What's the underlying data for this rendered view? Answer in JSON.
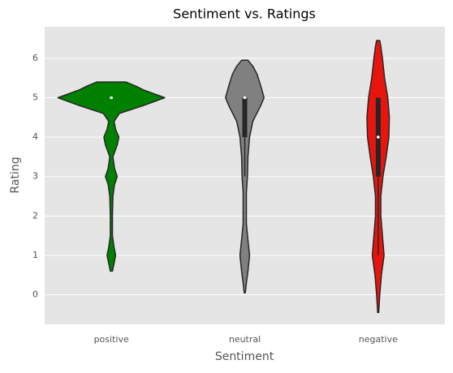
{
  "chart_data": {
    "type": "violin",
    "title": "Sentiment vs. Ratings",
    "xlabel": "Sentiment",
    "ylabel": "Rating",
    "categories": [
      "positive",
      "neutral",
      "negative"
    ],
    "series": [
      {
        "color": "#008000",
        "median": 5,
        "q1": 5,
        "q3": 5,
        "whisker_low": 5,
        "whisker_high": 5,
        "density_y": [
          0.6,
          0.8,
          1.0,
          1.2,
          1.5,
          2.0,
          2.5,
          2.8,
          3.0,
          3.2,
          3.5,
          3.8,
          4.0,
          4.2,
          4.4,
          4.6,
          4.8,
          5.0,
          5.2,
          5.3,
          5.4
        ],
        "density": [
          0.02,
          0.05,
          0.08,
          0.05,
          0.02,
          0.02,
          0.03,
          0.06,
          0.11,
          0.06,
          0.03,
          0.11,
          0.14,
          0.08,
          0.05,
          0.15,
          0.6,
          1,
          0.6,
          0.45,
          0.27
        ]
      },
      {
        "color": "#808080",
        "median": 5,
        "q1": 4,
        "q3": 5,
        "whisker_low": 3,
        "whisker_high": 5,
        "density_y": [
          0.05,
          0.3,
          0.6,
          1.0,
          1.4,
          1.8,
          2.2,
          2.6,
          3.0,
          3.5,
          4.0,
          4.4,
          4.8,
          5.0,
          5.3,
          5.6,
          5.8,
          5.95
        ],
        "density": [
          0.01,
          0.03,
          0.06,
          0.09,
          0.06,
          0.03,
          0.03,
          0.03,
          0.05,
          0.06,
          0.09,
          0.15,
          0.3,
          0.36,
          0.3,
          0.23,
          0.15,
          0.06
        ]
      },
      {
        "color": "#e8150f",
        "median": 4,
        "q1": 3,
        "q3": 5,
        "whisker_low": 1,
        "whisker_high": 5,
        "density_y": [
          -0.45,
          0,
          0.5,
          1.0,
          1.5,
          2.0,
          2.5,
          3.0,
          3.5,
          4.0,
          4.5,
          5.0,
          5.5,
          6.0,
          6.3,
          6.45
        ],
        "density": [
          0.01,
          0.03,
          0.06,
          0.11,
          0.08,
          0.05,
          0.05,
          0.09,
          0.15,
          0.2,
          0.21,
          0.18,
          0.12,
          0.08,
          0.05,
          0.03
        ]
      }
    ],
    "ylim": [
      -0.75,
      6.8
    ],
    "yticks": [
      0,
      1,
      2,
      3,
      4,
      5,
      6
    ],
    "grid": true
  }
}
